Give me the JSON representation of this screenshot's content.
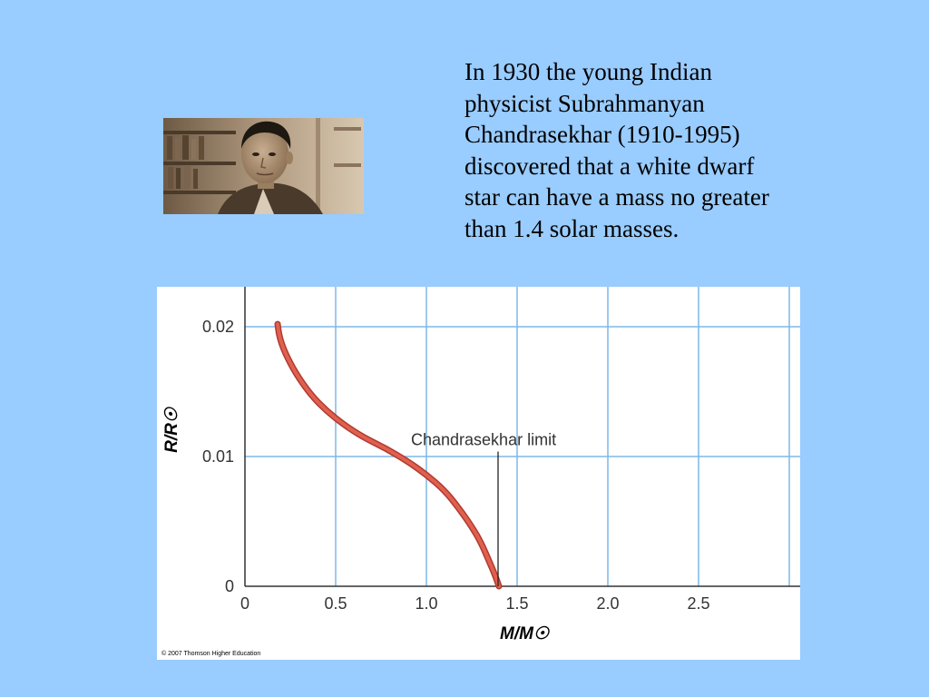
{
  "slide": {
    "text_lines": [
      "In 1930 the young Indian",
      "physicist Subrahmanyan",
      "Chandrasekhar (1910-1995)",
      "discovered that a white dwarf",
      "star can have a mass no greater",
      "than 1.4 solar masses."
    ],
    "background_color": "#99ccff"
  },
  "portrait": {
    "icon": "portrait-photo-icon",
    "tone": "sepia"
  },
  "chart_data": {
    "type": "line",
    "xlabel": "M/M☉",
    "ylabel": "R/R☉",
    "xlim": [
      0,
      3.0
    ],
    "ylim": [
      0,
      0.023
    ],
    "x_ticks": [
      0,
      0.5,
      1.0,
      1.5,
      2.0,
      2.5
    ],
    "x_tick_labels": [
      "0",
      "0.5",
      "1.0",
      "1.5",
      "2.0",
      "2.5"
    ],
    "y_ticks": [
      0,
      0.01,
      0.02
    ],
    "y_tick_labels": [
      "0",
      "0.01",
      "0.02"
    ],
    "grid": true,
    "series": [
      {
        "color": "#e06050",
        "x": [
          0.18,
          0.19,
          0.22,
          0.28,
          0.36,
          0.45,
          0.55,
          0.65,
          0.78,
          0.9,
          1.0,
          1.1,
          1.18,
          1.25,
          1.3,
          1.35,
          1.38,
          1.4
        ],
        "y": [
          0.0202,
          0.0192,
          0.018,
          0.0164,
          0.0148,
          0.0135,
          0.0124,
          0.0115,
          0.0106,
          0.0096,
          0.0086,
          0.0074,
          0.006,
          0.0046,
          0.0034,
          0.0018,
          0.0008,
          0.0
        ]
      }
    ],
    "annotations": [
      {
        "text": "Chandrasekhar limit",
        "x": 1.4,
        "y": 0.0101
      }
    ],
    "credit": "© 2007 Thomson Higher Education"
  }
}
